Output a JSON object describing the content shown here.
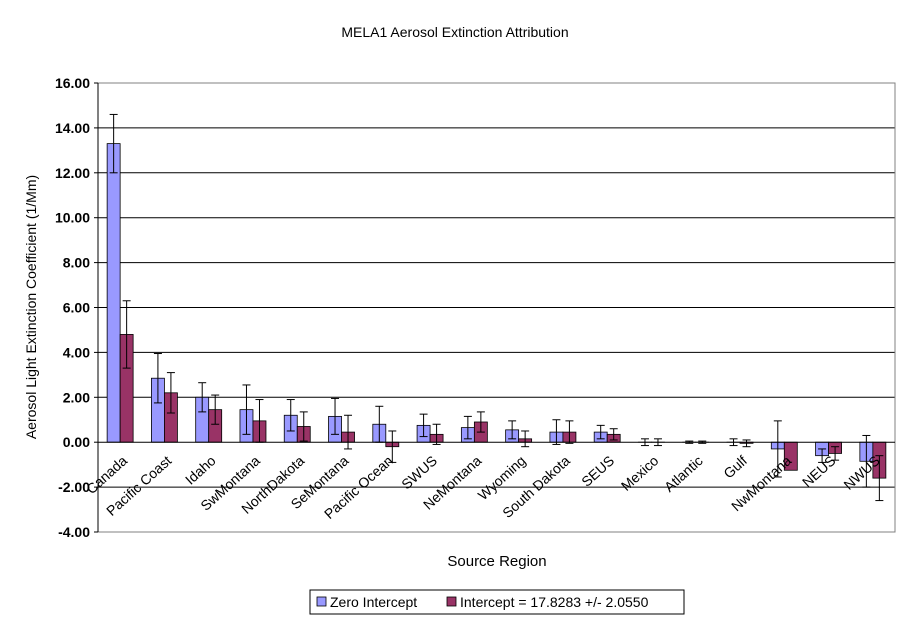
{
  "chart_data": {
    "type": "bar",
    "title": "MELA1 Aerosol Extinction Attribution",
    "xlabel": "Source Region",
    "ylabel": "Aerosol Light Extinction Coefficient (1/Mm)",
    "ylim": [
      -4,
      16
    ],
    "ytick_step": 2,
    "ytick_labels": [
      "-4.00",
      "-2.00",
      "0.00",
      "2.00",
      "4.00",
      "6.00",
      "8.00",
      "10.00",
      "12.00",
      "14.00",
      "16.00"
    ],
    "grid": true,
    "legend_position": "bottom-center",
    "categories": [
      "Canada",
      "Pacific Coast",
      "Idaho",
      "SwMontana",
      "NorthDakota",
      "SeMontana",
      "Pacific Ocean",
      "SWUS",
      "NeMontana",
      "Wyoming",
      "South Dakota",
      "SEUS",
      "Mexico",
      "Atlantic",
      "Gulf",
      "NwMontana",
      "NEUS",
      "NWUS"
    ],
    "series": [
      {
        "name": "Zero Intercept",
        "color": "#9999ff",
        "values": [
          13.3,
          2.85,
          2.0,
          1.45,
          1.2,
          1.15,
          0.8,
          0.75,
          0.65,
          0.55,
          0.45,
          0.45,
          0.0,
          0.0,
          0.0,
          -0.3,
          -0.6,
          -0.85
        ],
        "errors": [
          1.3,
          1.1,
          0.65,
          1.1,
          0.7,
          0.8,
          0.8,
          0.5,
          0.5,
          0.4,
          0.55,
          0.3,
          0.15,
          0.05,
          0.15,
          1.25,
          0.3,
          1.15
        ]
      },
      {
        "name": "Intercept = 17.8283 +/- 2.0550",
        "color": "#993366",
        "values": [
          4.8,
          2.2,
          1.45,
          0.95,
          0.7,
          0.45,
          -0.2,
          0.35,
          0.9,
          0.15,
          0.45,
          0.35,
          0.0,
          0.0,
          -0.05,
          -1.25,
          -0.5,
          -1.6
        ],
        "errors": [
          1.5,
          0.9,
          0.65,
          0.95,
          0.65,
          0.75,
          0.7,
          0.45,
          0.45,
          0.35,
          0.5,
          0.25,
          0.15,
          0.05,
          0.15,
          0.0,
          0.3,
          1.0
        ]
      }
    ]
  }
}
